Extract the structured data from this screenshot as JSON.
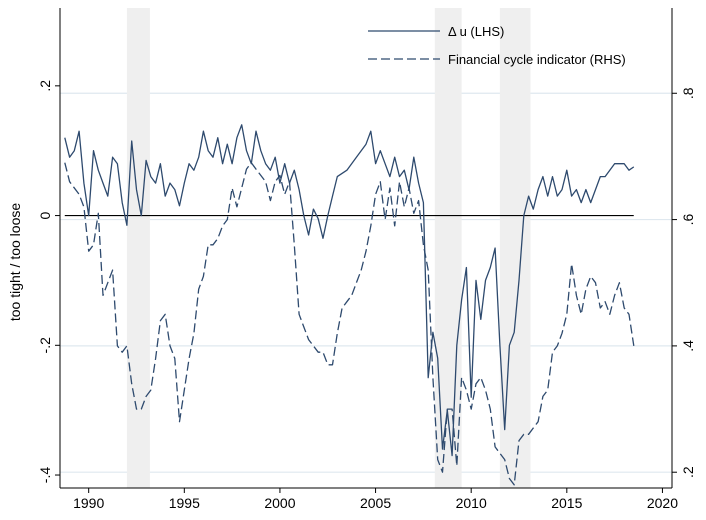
{
  "chart_data": {
    "type": "line",
    "title": "",
    "xlabel": "",
    "ylabel": "too tight / too loose",
    "xlim": [
      1988.5,
      2020.5
    ],
    "ylim_left": [
      -0.42,
      0.32
    ],
    "ylim_right": [
      0.175,
      0.935
    ],
    "x_ticks": [
      1990,
      1995,
      2000,
      2005,
      2010,
      2015,
      2020
    ],
    "x_tick_labels": [
      "1990",
      "1995",
      "2000",
      "2005",
      "2010",
      "2015",
      "2020"
    ],
    "y_left_ticks": [
      -0.4,
      -0.2,
      0,
      0.2
    ],
    "y_left_tick_labels": [
      "-.4",
      "-.2",
      "0",
      ".2"
    ],
    "y_right_ticks": [
      0.2,
      0.4,
      0.6,
      0.8
    ],
    "y_right_tick_labels": [
      ".2",
      ".4",
      ".6",
      ".8"
    ],
    "grid_right": true,
    "zero_line": 0,
    "legend_position": "top-right",
    "shaded_periods": [
      [
        1992.0,
        1993.2
      ],
      [
        2008.1,
        2009.5
      ],
      [
        2011.5,
        2013.1
      ]
    ],
    "colors": {
      "line": "#2e4a6e",
      "shade": "#efefef",
      "grid": "#dfe8ef",
      "axis": "#000000"
    },
    "series": [
      {
        "name": "Δ u (LHS)",
        "axis": "left",
        "style": "solid",
        "points": [
          [
            1988.75,
            0.12
          ],
          [
            1989.0,
            0.09
          ],
          [
            1989.25,
            0.1
          ],
          [
            1989.5,
            0.13
          ],
          [
            1989.75,
            0.05
          ],
          [
            1990.0,
            0.0
          ],
          [
            1990.25,
            0.1
          ],
          [
            1990.5,
            0.07
          ],
          [
            1990.75,
            0.05
          ],
          [
            1991.0,
            0.03
          ],
          [
            1991.25,
            0.09
          ],
          [
            1991.5,
            0.08
          ],
          [
            1991.75,
            0.02
          ],
          [
            1992.0,
            -0.015
          ],
          [
            1992.25,
            0.115
          ],
          [
            1992.5,
            0.04
          ],
          [
            1992.75,
            0.0
          ],
          [
            1993.0,
            0.085
          ],
          [
            1993.25,
            0.06
          ],
          [
            1993.5,
            0.05
          ],
          [
            1993.75,
            0.08
          ],
          [
            1994.0,
            0.03
          ],
          [
            1994.25,
            0.05
          ],
          [
            1994.5,
            0.04
          ],
          [
            1994.75,
            0.015
          ],
          [
            1995.0,
            0.05
          ],
          [
            1995.25,
            0.08
          ],
          [
            1995.5,
            0.07
          ],
          [
            1995.75,
            0.09
          ],
          [
            1996.0,
            0.13
          ],
          [
            1996.25,
            0.1
          ],
          [
            1996.5,
            0.09
          ],
          [
            1996.75,
            0.12
          ],
          [
            1997.0,
            0.08
          ],
          [
            1997.25,
            0.11
          ],
          [
            1997.5,
            0.08
          ],
          [
            1997.75,
            0.12
          ],
          [
            1998.0,
            0.14
          ],
          [
            1998.25,
            0.1
          ],
          [
            1998.5,
            0.08
          ],
          [
            1998.75,
            0.13
          ],
          [
            1999.0,
            0.1
          ],
          [
            1999.25,
            0.08
          ],
          [
            1999.5,
            0.07
          ],
          [
            1999.75,
            0.09
          ],
          [
            2000.0,
            0.05
          ],
          [
            2000.25,
            0.08
          ],
          [
            2000.5,
            0.05
          ],
          [
            2000.75,
            0.07
          ],
          [
            2001.0,
            0.04
          ],
          [
            2001.25,
            0.0
          ],
          [
            2001.5,
            -0.03
          ],
          [
            2001.75,
            0.01
          ],
          [
            2002.0,
            -0.005
          ],
          [
            2002.25,
            -0.035
          ],
          [
            2002.5,
            0.0
          ],
          [
            2002.75,
            0.03
          ],
          [
            2003.0,
            0.06
          ],
          [
            2003.5,
            0.07
          ],
          [
            2004.0,
            0.09
          ],
          [
            2004.5,
            0.11
          ],
          [
            2004.75,
            0.13
          ],
          [
            2005.0,
            0.08
          ],
          [
            2005.25,
            0.1
          ],
          [
            2005.5,
            0.08
          ],
          [
            2005.75,
            0.06
          ],
          [
            2006.0,
            0.09
          ],
          [
            2006.25,
            0.06
          ],
          [
            2006.5,
            0.07
          ],
          [
            2006.75,
            0.04
          ],
          [
            2007.0,
            0.09
          ],
          [
            2007.25,
            0.05
          ],
          [
            2007.5,
            0.02
          ],
          [
            2007.75,
            -0.25
          ],
          [
            2008.0,
            -0.18
          ],
          [
            2008.25,
            -0.22
          ],
          [
            2008.5,
            -0.36
          ],
          [
            2008.75,
            -0.3
          ],
          [
            2009.0,
            -0.37
          ],
          [
            2009.25,
            -0.2
          ],
          [
            2009.5,
            -0.13
          ],
          [
            2009.75,
            -0.08
          ],
          [
            2010.0,
            -0.28
          ],
          [
            2010.25,
            -0.1
          ],
          [
            2010.5,
            -0.16
          ],
          [
            2010.75,
            -0.1
          ],
          [
            2011.0,
            -0.08
          ],
          [
            2011.25,
            -0.05
          ],
          [
            2011.5,
            -0.2
          ],
          [
            2011.75,
            -0.33
          ],
          [
            2012.0,
            -0.2
          ],
          [
            2012.25,
            -0.18
          ],
          [
            2012.5,
            -0.1
          ],
          [
            2012.75,
            0.0
          ],
          [
            2013.0,
            0.03
          ],
          [
            2013.25,
            0.01
          ],
          [
            2013.5,
            0.04
          ],
          [
            2013.75,
            0.06
          ],
          [
            2014.0,
            0.03
          ],
          [
            2014.25,
            0.06
          ],
          [
            2014.5,
            0.03
          ],
          [
            2014.75,
            0.04
          ],
          [
            2015.0,
            0.07
          ],
          [
            2015.25,
            0.03
          ],
          [
            2015.5,
            0.04
          ],
          [
            2015.75,
            0.02
          ],
          [
            2016.0,
            0.04
          ],
          [
            2016.25,
            0.02
          ],
          [
            2016.5,
            0.04
          ],
          [
            2016.75,
            0.06
          ],
          [
            2017.0,
            0.06
          ],
          [
            2017.25,
            0.07
          ],
          [
            2017.5,
            0.08
          ],
          [
            2017.75,
            0.08
          ],
          [
            2018.0,
            0.08
          ],
          [
            2018.25,
            0.07
          ],
          [
            2018.5,
            0.075
          ]
        ]
      },
      {
        "name": "Financial cycle indicator (RHS)",
        "axis": "right",
        "style": "dashed",
        "points": [
          [
            1988.75,
            0.69
          ],
          [
            1989.0,
            0.66
          ],
          [
            1989.5,
            0.64
          ],
          [
            1989.75,
            0.62
          ],
          [
            1990.0,
            0.55
          ],
          [
            1990.25,
            0.56
          ],
          [
            1990.5,
            0.61
          ],
          [
            1990.75,
            0.48
          ],
          [
            1991.0,
            0.5
          ],
          [
            1991.25,
            0.52
          ],
          [
            1991.5,
            0.4
          ],
          [
            1991.75,
            0.39
          ],
          [
            1992.0,
            0.4
          ],
          [
            1992.25,
            0.34
          ],
          [
            1992.5,
            0.3
          ],
          [
            1992.75,
            0.3
          ],
          [
            1993.0,
            0.32
          ],
          [
            1993.25,
            0.33
          ],
          [
            1993.5,
            0.38
          ],
          [
            1993.75,
            0.44
          ],
          [
            1994.0,
            0.45
          ],
          [
            1994.25,
            0.4
          ],
          [
            1994.5,
            0.38
          ],
          [
            1994.75,
            0.28
          ],
          [
            1995.0,
            0.33
          ],
          [
            1995.25,
            0.38
          ],
          [
            1995.5,
            0.42
          ],
          [
            1995.75,
            0.49
          ],
          [
            1996.0,
            0.51
          ],
          [
            1996.25,
            0.56
          ],
          [
            1996.5,
            0.56
          ],
          [
            1996.75,
            0.57
          ],
          [
            1997.0,
            0.59
          ],
          [
            1997.25,
            0.6
          ],
          [
            1997.5,
            0.65
          ],
          [
            1997.75,
            0.62
          ],
          [
            1998.0,
            0.65
          ],
          [
            1998.25,
            0.68
          ],
          [
            1998.5,
            0.69
          ],
          [
            1998.75,
            0.68
          ],
          [
            1999.0,
            0.67
          ],
          [
            1999.25,
            0.66
          ],
          [
            1999.5,
            0.63
          ],
          [
            1999.75,
            0.66
          ],
          [
            2000.0,
            0.67
          ],
          [
            2000.25,
            0.64
          ],
          [
            2000.5,
            0.66
          ],
          [
            2000.75,
            0.56
          ],
          [
            2001.0,
            0.45
          ],
          [
            2001.25,
            0.43
          ],
          [
            2001.5,
            0.41
          ],
          [
            2001.75,
            0.4
          ],
          [
            2002.0,
            0.39
          ],
          [
            2002.25,
            0.39
          ],
          [
            2002.5,
            0.37
          ],
          [
            2002.75,
            0.37
          ],
          [
            2003.0,
            0.42
          ],
          [
            2003.25,
            0.46
          ],
          [
            2003.5,
            0.47
          ],
          [
            2003.75,
            0.48
          ],
          [
            2004.0,
            0.5
          ],
          [
            2004.25,
            0.52
          ],
          [
            2004.5,
            0.55
          ],
          [
            2004.75,
            0.59
          ],
          [
            2005.0,
            0.64
          ],
          [
            2005.25,
            0.66
          ],
          [
            2005.5,
            0.6
          ],
          [
            2005.75,
            0.65
          ],
          [
            2006.0,
            0.59
          ],
          [
            2006.25,
            0.66
          ],
          [
            2006.5,
            0.62
          ],
          [
            2006.75,
            0.65
          ],
          [
            2007.0,
            0.61
          ],
          [
            2007.25,
            0.63
          ],
          [
            2007.5,
            0.56
          ],
          [
            2007.75,
            0.52
          ],
          [
            2008.0,
            0.35
          ],
          [
            2008.25,
            0.22
          ],
          [
            2008.5,
            0.2
          ],
          [
            2008.75,
            0.3
          ],
          [
            2009.0,
            0.3
          ],
          [
            2009.25,
            0.21
          ],
          [
            2009.5,
            0.35
          ],
          [
            2009.75,
            0.33
          ],
          [
            2010.0,
            0.3
          ],
          [
            2010.25,
            0.34
          ],
          [
            2010.5,
            0.35
          ],
          [
            2010.75,
            0.33
          ],
          [
            2011.0,
            0.3
          ],
          [
            2011.25,
            0.24
          ],
          [
            2011.5,
            0.23
          ],
          [
            2011.75,
            0.22
          ],
          [
            2012.0,
            0.19
          ],
          [
            2012.25,
            0.18
          ],
          [
            2012.5,
            0.25
          ],
          [
            2012.75,
            0.26
          ],
          [
            2013.0,
            0.26
          ],
          [
            2013.25,
            0.27
          ],
          [
            2013.5,
            0.28
          ],
          [
            2013.75,
            0.32
          ],
          [
            2014.0,
            0.33
          ],
          [
            2014.25,
            0.39
          ],
          [
            2014.5,
            0.4
          ],
          [
            2014.75,
            0.42
          ],
          [
            2015.0,
            0.45
          ],
          [
            2015.25,
            0.53
          ],
          [
            2015.5,
            0.48
          ],
          [
            2015.75,
            0.45
          ],
          [
            2016.0,
            0.49
          ],
          [
            2016.25,
            0.51
          ],
          [
            2016.5,
            0.5
          ],
          [
            2016.75,
            0.46
          ],
          [
            2017.0,
            0.47
          ],
          [
            2017.25,
            0.45
          ],
          [
            2017.5,
            0.48
          ],
          [
            2017.75,
            0.5
          ],
          [
            2018.0,
            0.46
          ],
          [
            2018.25,
            0.45
          ],
          [
            2018.5,
            0.4
          ]
        ]
      }
    ]
  }
}
